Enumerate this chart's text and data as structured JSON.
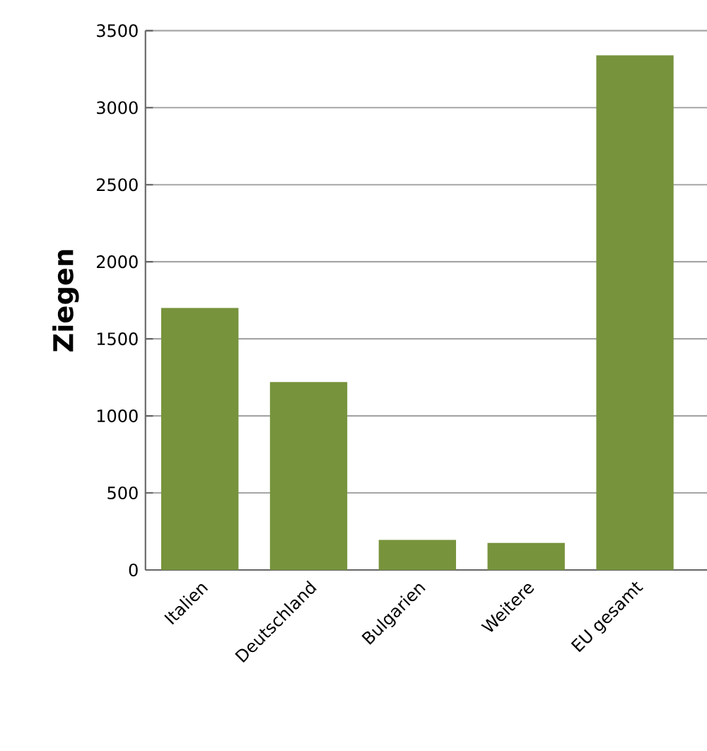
{
  "chart_data": {
    "type": "bar",
    "ylabel": "Ziegen",
    "categories": [
      "Italien",
      "Deutschland",
      "Bulgarien",
      "Weitere",
      "EU gesamt"
    ],
    "values": [
      1700,
      1220,
      195,
      175,
      3340
    ],
    "color": "#77933c",
    "ylim": [
      0,
      3500
    ],
    "yticks": [
      0,
      500,
      1000,
      1500,
      2000,
      2500,
      3000,
      3500
    ],
    "grid": "y"
  }
}
